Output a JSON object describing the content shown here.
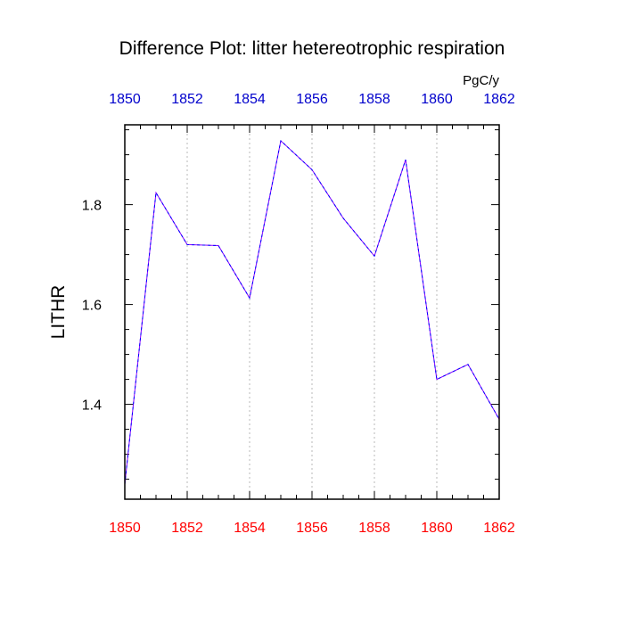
{
  "chart_data": {
    "type": "line",
    "title": "Difference Plot: litter hetereotrophic respiration",
    "ylabel": "LITHR",
    "units": "PgC/y",
    "x": [
      1850,
      1851,
      1852,
      1853,
      1854,
      1855,
      1856,
      1857,
      1858,
      1859,
      1860,
      1861,
      1862
    ],
    "series": [
      {
        "values": [
          1.24,
          1.824,
          1.72,
          1.718,
          1.613,
          1.928,
          1.87,
          1.773,
          1.697,
          1.89,
          1.45,
          1.48,
          1.37
        ],
        "color": "#8800ff",
        "dash_color": "#0000ff"
      }
    ],
    "xlim": [
      1850,
      1862
    ],
    "ylim": [
      1.21,
      1.96
    ],
    "xticks": [
      1850,
      1852,
      1854,
      1856,
      1858,
      1860,
      1862
    ],
    "xticks_labels": [
      "1850",
      "1852",
      "1854",
      "1856",
      "1858",
      "1860",
      "1862"
    ],
    "yticks": [
      1.4,
      1.6,
      1.8
    ],
    "yticks_labels": [
      "1.4",
      "1.6",
      "1.8"
    ],
    "bottom_axis_color": "#ff0000",
    "top_axis_color": "#0000cc",
    "grid": "vertical-dotted"
  }
}
